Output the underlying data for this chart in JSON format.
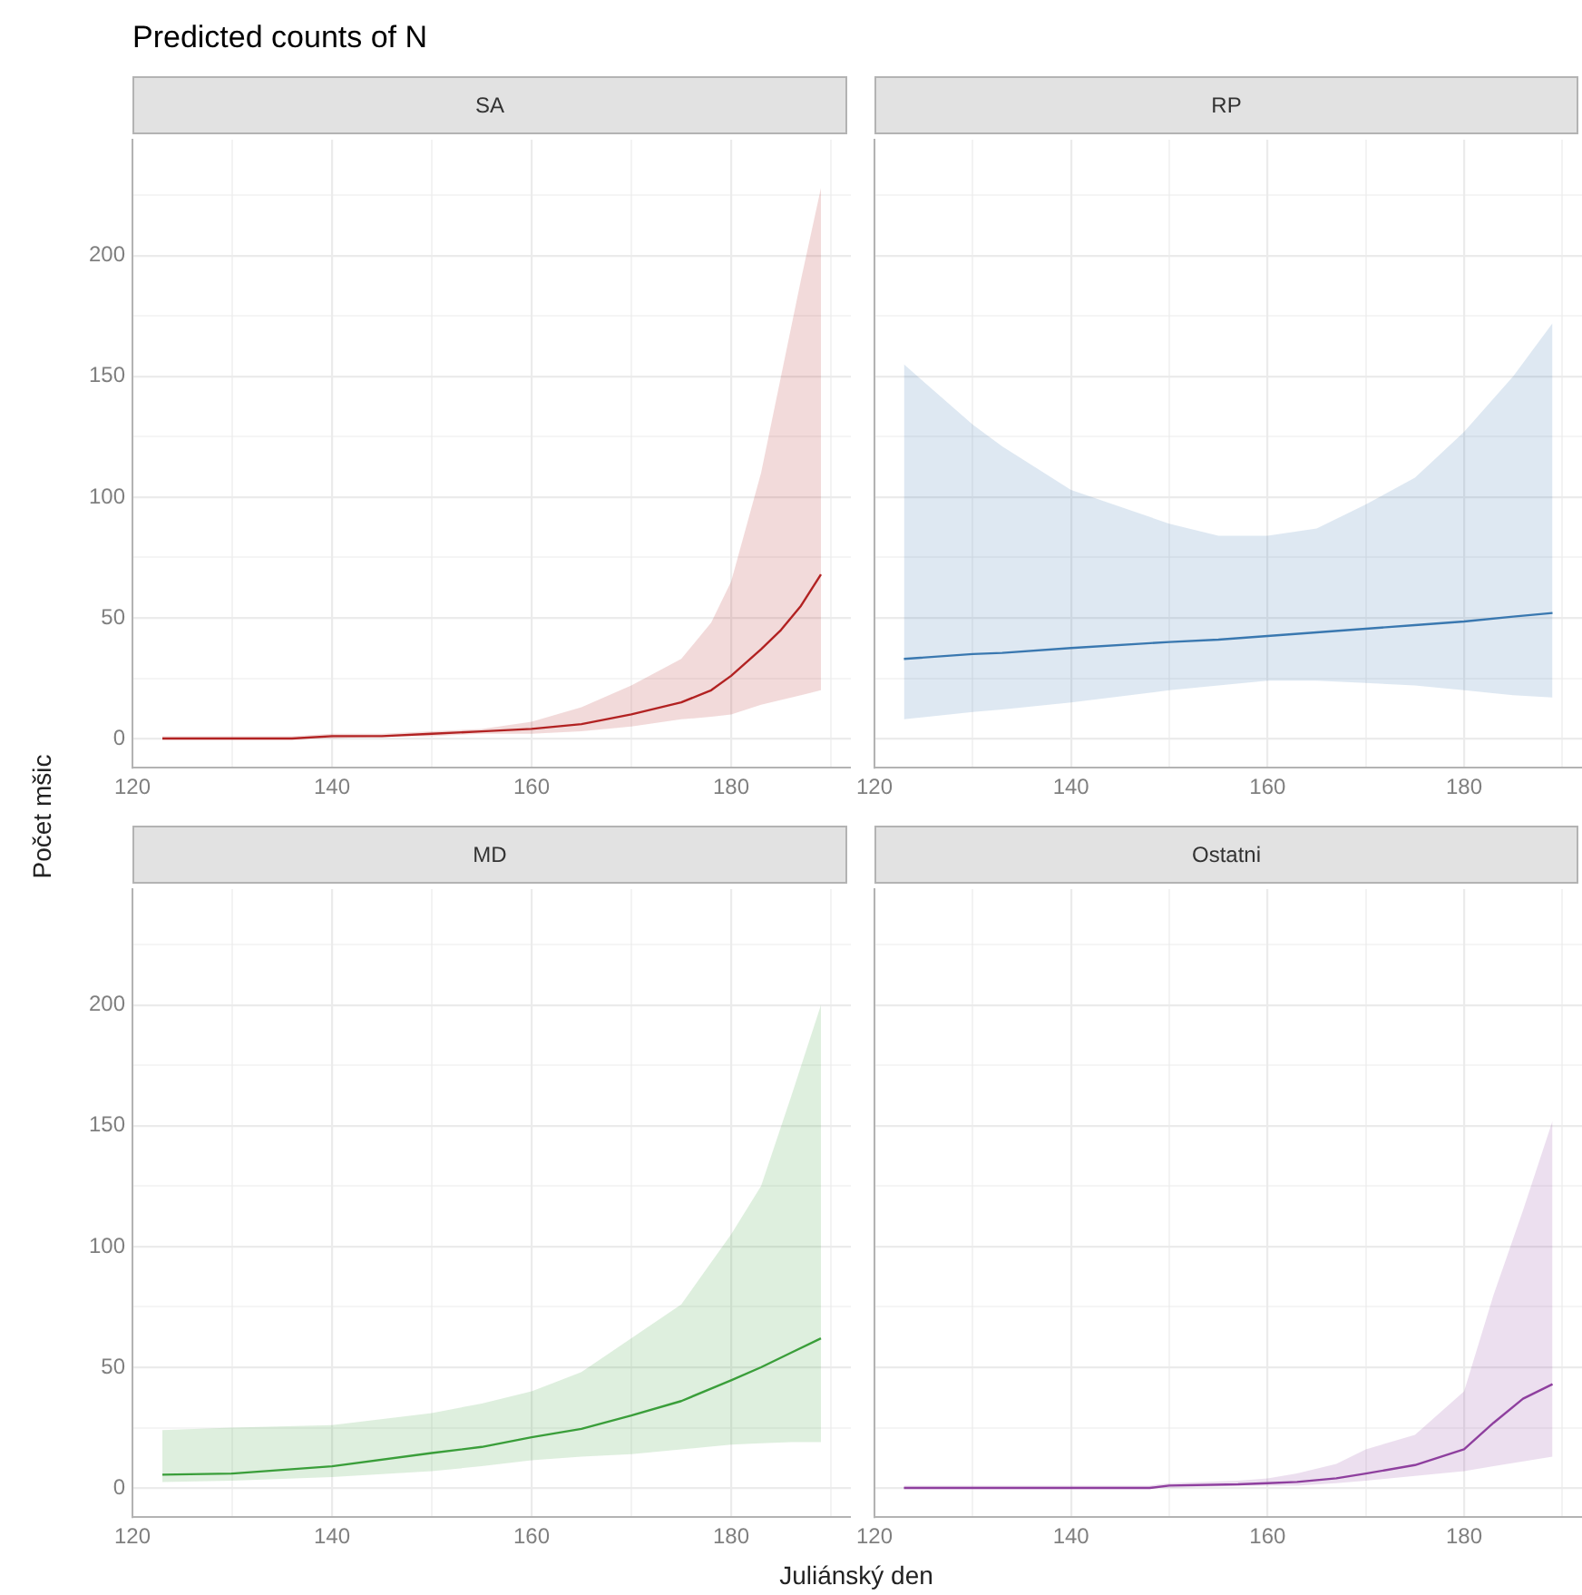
{
  "chart_data": [
    {
      "type": "line",
      "title": "Predicted counts of N",
      "xlabel": "Juliánský den",
      "ylabel": "Počet mšic",
      "xlim": [
        120,
        192
      ],
      "ylim": [
        -12,
        248
      ],
      "xticks": [
        120,
        {
          "value": 130,
          "label": null
        },
        140,
        {
          "value": 150,
          "label": null
        },
        160,
        {
          "value": 170,
          "label": null
        },
        180,
        {
          "value": 190,
          "label": null
        }
      ],
      "yticks": [
        0,
        {
          "value": 25,
          "label": null
        },
        50,
        {
          "value": 75,
          "label": null
        },
        100,
        {
          "value": 125,
          "label": null
        },
        150,
        {
          "value": 175,
          "label": null
        },
        200,
        {
          "value": 225,
          "label": null
        }
      ],
      "grid": true,
      "marker": "none",
      "line_style": "solid",
      "series": [
        {
          "name": "SA",
          "color": "#b22222",
          "x": [
            123,
            130,
            136,
            140,
            145,
            150,
            155,
            160,
            165,
            170,
            175,
            178,
            180,
            183,
            185,
            187,
            189
          ],
          "values": [
            0,
            0,
            0,
            1,
            1,
            2,
            3,
            4,
            6,
            10,
            15,
            20,
            26,
            37,
            45,
            55,
            68
          ],
          "lower": [
            0,
            0,
            0,
            0,
            1,
            1,
            2,
            2,
            3,
            5,
            8,
            9,
            10,
            14,
            16,
            18,
            20
          ],
          "upper": [
            1,
            1,
            1,
            2,
            2,
            3,
            4,
            7,
            13,
            22,
            33,
            48,
            65,
            110,
            150,
            190,
            228
          ]
        }
      ]
    },
    {
      "type": "line",
      "xlim": [
        120,
        192
      ],
      "ylim": [
        -12,
        248
      ],
      "xticks": [
        120,
        {
          "value": 130,
          "label": null
        },
        140,
        {
          "value": 150,
          "label": null
        },
        160,
        {
          "value": 170,
          "label": null
        },
        180,
        {
          "value": 190,
          "label": null
        }
      ],
      "yticks": [
        0,
        {
          "value": 25,
          "label": null
        },
        50,
        {
          "value": 75,
          "label": null
        },
        100,
        {
          "value": 125,
          "label": null
        },
        150,
        {
          "value": 175,
          "label": null
        },
        200,
        {
          "value": 225,
          "label": null
        }
      ],
      "grid": true,
      "marker": "none",
      "line_style": "solid",
      "tick_labels": "x",
      "series": [
        {
          "name": "RP",
          "color": "#3a78b0",
          "x": [
            123,
            130,
            133,
            140,
            150,
            155,
            160,
            165,
            170,
            175,
            180,
            185,
            189
          ],
          "values": [
            33,
            35,
            35.5,
            37.5,
            40,
            41,
            42.5,
            44,
            45.5,
            47,
            48.5,
            50.5,
            52
          ],
          "lower": [
            8,
            11,
            12,
            15,
            20,
            22,
            24,
            24,
            23,
            22,
            20,
            18,
            17
          ],
          "upper": [
            155,
            130,
            121,
            103,
            89,
            84,
            84,
            87,
            97,
            108,
            127,
            150,
            172
          ]
        }
      ]
    },
    {
      "type": "line",
      "xlim": [
        120,
        192
      ],
      "ylim": [
        -12,
        248
      ],
      "xticks": [
        120,
        {
          "value": 130,
          "label": null
        },
        140,
        {
          "value": 150,
          "label": null
        },
        160,
        {
          "value": 170,
          "label": null
        },
        180,
        {
          "value": 190,
          "label": null
        }
      ],
      "yticks": [
        0,
        {
          "value": 25,
          "label": null
        },
        50,
        {
          "value": 75,
          "label": null
        },
        100,
        {
          "value": 125,
          "label": null
        },
        150,
        {
          "value": 175,
          "label": null
        },
        200,
        {
          "value": 225,
          "label": null
        }
      ],
      "grid": true,
      "marker": "none",
      "line_style": "solid",
      "series": [
        {
          "name": "MD",
          "color": "#3a9e3a",
          "x": [
            123,
            130,
            140,
            150,
            155,
            160,
            165,
            170,
            175,
            180,
            183,
            186,
            189
          ],
          "values": [
            5.5,
            6,
            9,
            14.5,
            17,
            21,
            24.5,
            30,
            36,
            44.6,
            50,
            56,
            62
          ],
          "lower": [
            2.5,
            3,
            4.5,
            7,
            9,
            11.5,
            13,
            14,
            16,
            18,
            18.5,
            19,
            19
          ],
          "upper": [
            24,
            25,
            26,
            31,
            35,
            40,
            48,
            62,
            76,
            105,
            125,
            162,
            200
          ]
        }
      ]
    },
    {
      "type": "line",
      "xlim": [
        120,
        192
      ],
      "ylim": [
        -12,
        248
      ],
      "xticks": [
        120,
        {
          "value": 130,
          "label": null
        },
        140,
        {
          "value": 150,
          "label": null
        },
        160,
        {
          "value": 170,
          "label": null
        },
        180,
        {
          "value": 190,
          "label": null
        }
      ],
      "yticks": [
        0,
        {
          "value": 25,
          "label": null
        },
        50,
        {
          "value": 75,
          "label": null
        },
        100,
        {
          "value": 125,
          "label": null
        },
        150,
        {
          "value": 175,
          "label": null
        },
        200,
        {
          "value": 225,
          "label": null
        }
      ],
      "grid": true,
      "marker": "none",
      "line_style": "solid",
      "tick_labels": "x",
      "series": [
        {
          "name": "Ostatni",
          "color": "#8e3f9e",
          "x": [
            123,
            140,
            148,
            150,
            157,
            160,
            163,
            167,
            170,
            175,
            180,
            183,
            186,
            189
          ],
          "values": [
            0,
            0,
            0,
            1,
            1.5,
            2,
            2.5,
            4,
            6,
            9.5,
            16,
            27,
            37,
            43
          ],
          "lower": [
            0,
            0,
            0,
            0,
            1,
            1,
            1,
            2,
            3,
            5,
            7,
            9,
            11,
            13
          ],
          "upper": [
            1,
            1,
            1,
            2,
            3,
            4,
            6,
            10,
            16,
            22,
            40,
            80,
            115,
            152
          ]
        }
      ]
    }
  ]
}
